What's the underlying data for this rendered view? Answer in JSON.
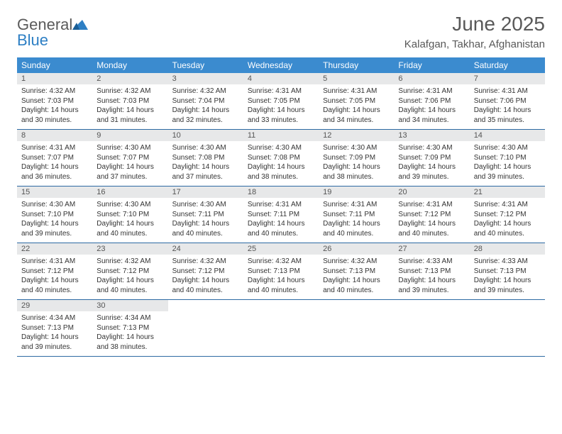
{
  "logo": {
    "word1": "General",
    "word2": "Blue"
  },
  "title": "June 2025",
  "location": "Kalafgan, Takhar, Afghanistan",
  "colors": {
    "header_bg": "#3b8bcf",
    "header_text": "#ffffff",
    "daynum_bg": "#e7e8e9",
    "row_border": "#2d6aa3",
    "title_color": "#595959",
    "logo_gray": "#5a5a5a",
    "logo_blue": "#2d7fc4",
    "body_text": "#333333",
    "page_bg": "#ffffff"
  },
  "typography": {
    "title_fontsize": 28,
    "location_fontsize": 15,
    "header_fontsize": 12,
    "daynum_fontsize": 11,
    "cell_fontsize": 10
  },
  "weekdays": [
    "Sunday",
    "Monday",
    "Tuesday",
    "Wednesday",
    "Thursday",
    "Friday",
    "Saturday"
  ],
  "days": [
    {
      "n": 1,
      "sunrise": "4:32 AM",
      "sunset": "7:03 PM",
      "daylight": "14 hours and 30 minutes."
    },
    {
      "n": 2,
      "sunrise": "4:32 AM",
      "sunset": "7:03 PM",
      "daylight": "14 hours and 31 minutes."
    },
    {
      "n": 3,
      "sunrise": "4:32 AM",
      "sunset": "7:04 PM",
      "daylight": "14 hours and 32 minutes."
    },
    {
      "n": 4,
      "sunrise": "4:31 AM",
      "sunset": "7:05 PM",
      "daylight": "14 hours and 33 minutes."
    },
    {
      "n": 5,
      "sunrise": "4:31 AM",
      "sunset": "7:05 PM",
      "daylight": "14 hours and 34 minutes."
    },
    {
      "n": 6,
      "sunrise": "4:31 AM",
      "sunset": "7:06 PM",
      "daylight": "14 hours and 34 minutes."
    },
    {
      "n": 7,
      "sunrise": "4:31 AM",
      "sunset": "7:06 PM",
      "daylight": "14 hours and 35 minutes."
    },
    {
      "n": 8,
      "sunrise": "4:31 AM",
      "sunset": "7:07 PM",
      "daylight": "14 hours and 36 minutes."
    },
    {
      "n": 9,
      "sunrise": "4:30 AM",
      "sunset": "7:07 PM",
      "daylight": "14 hours and 37 minutes."
    },
    {
      "n": 10,
      "sunrise": "4:30 AM",
      "sunset": "7:08 PM",
      "daylight": "14 hours and 37 minutes."
    },
    {
      "n": 11,
      "sunrise": "4:30 AM",
      "sunset": "7:08 PM",
      "daylight": "14 hours and 38 minutes."
    },
    {
      "n": 12,
      "sunrise": "4:30 AM",
      "sunset": "7:09 PM",
      "daylight": "14 hours and 38 minutes."
    },
    {
      "n": 13,
      "sunrise": "4:30 AM",
      "sunset": "7:09 PM",
      "daylight": "14 hours and 39 minutes."
    },
    {
      "n": 14,
      "sunrise": "4:30 AM",
      "sunset": "7:10 PM",
      "daylight": "14 hours and 39 minutes."
    },
    {
      "n": 15,
      "sunrise": "4:30 AM",
      "sunset": "7:10 PM",
      "daylight": "14 hours and 39 minutes."
    },
    {
      "n": 16,
      "sunrise": "4:30 AM",
      "sunset": "7:10 PM",
      "daylight": "14 hours and 40 minutes."
    },
    {
      "n": 17,
      "sunrise": "4:30 AM",
      "sunset": "7:11 PM",
      "daylight": "14 hours and 40 minutes."
    },
    {
      "n": 18,
      "sunrise": "4:31 AM",
      "sunset": "7:11 PM",
      "daylight": "14 hours and 40 minutes."
    },
    {
      "n": 19,
      "sunrise": "4:31 AM",
      "sunset": "7:11 PM",
      "daylight": "14 hours and 40 minutes."
    },
    {
      "n": 20,
      "sunrise": "4:31 AM",
      "sunset": "7:12 PM",
      "daylight": "14 hours and 40 minutes."
    },
    {
      "n": 21,
      "sunrise": "4:31 AM",
      "sunset": "7:12 PM",
      "daylight": "14 hours and 40 minutes."
    },
    {
      "n": 22,
      "sunrise": "4:31 AM",
      "sunset": "7:12 PM",
      "daylight": "14 hours and 40 minutes."
    },
    {
      "n": 23,
      "sunrise": "4:32 AM",
      "sunset": "7:12 PM",
      "daylight": "14 hours and 40 minutes."
    },
    {
      "n": 24,
      "sunrise": "4:32 AM",
      "sunset": "7:12 PM",
      "daylight": "14 hours and 40 minutes."
    },
    {
      "n": 25,
      "sunrise": "4:32 AM",
      "sunset": "7:13 PM",
      "daylight": "14 hours and 40 minutes."
    },
    {
      "n": 26,
      "sunrise": "4:32 AM",
      "sunset": "7:13 PM",
      "daylight": "14 hours and 40 minutes."
    },
    {
      "n": 27,
      "sunrise": "4:33 AM",
      "sunset": "7:13 PM",
      "daylight": "14 hours and 39 minutes."
    },
    {
      "n": 28,
      "sunrise": "4:33 AM",
      "sunset": "7:13 PM",
      "daylight": "14 hours and 39 minutes."
    },
    {
      "n": 29,
      "sunrise": "4:34 AM",
      "sunset": "7:13 PM",
      "daylight": "14 hours and 39 minutes."
    },
    {
      "n": 30,
      "sunrise": "4:34 AM",
      "sunset": "7:13 PM",
      "daylight": "14 hours and 38 minutes."
    }
  ],
  "labels": {
    "sunrise": "Sunrise:",
    "sunset": "Sunset:",
    "daylight": "Daylight:"
  },
  "layout": {
    "first_weekday_index": 0,
    "rows": 5,
    "cols": 7
  }
}
